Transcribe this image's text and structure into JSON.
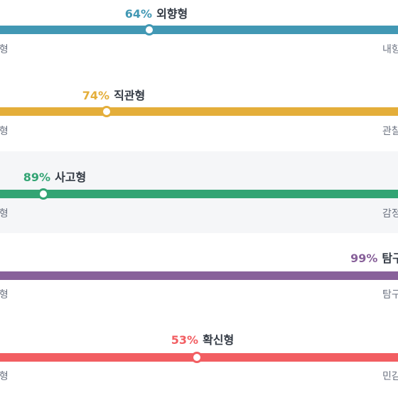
{
  "traits": [
    {
      "percent": "64%",
      "name": "외향형",
      "left_label": "향형",
      "right_label": "내향",
      "value": 64,
      "color": "#4298b4",
      "highlighted": false
    },
    {
      "percent": "74%",
      "name": "직관형",
      "left_label": "관형",
      "right_label": "관찰",
      "value": 74,
      "color": "#e4ae3a",
      "highlighted": false
    },
    {
      "percent": "89%",
      "name": "사고형",
      "left_label": "고형",
      "right_label": "감정",
      "value": 89,
      "color": "#33a474",
      "highlighted": true
    },
    {
      "percent": "99%",
      "name": "탐구",
      "left_label": "획형",
      "right_label": "탐구",
      "value": 99,
      "color": "#88619a",
      "highlighted": false
    },
    {
      "percent": "53%",
      "name": "확신형",
      "left_label": "신형",
      "right_label": "민감",
      "value": 53,
      "color": "#f25e62",
      "highlighted": false
    }
  ]
}
